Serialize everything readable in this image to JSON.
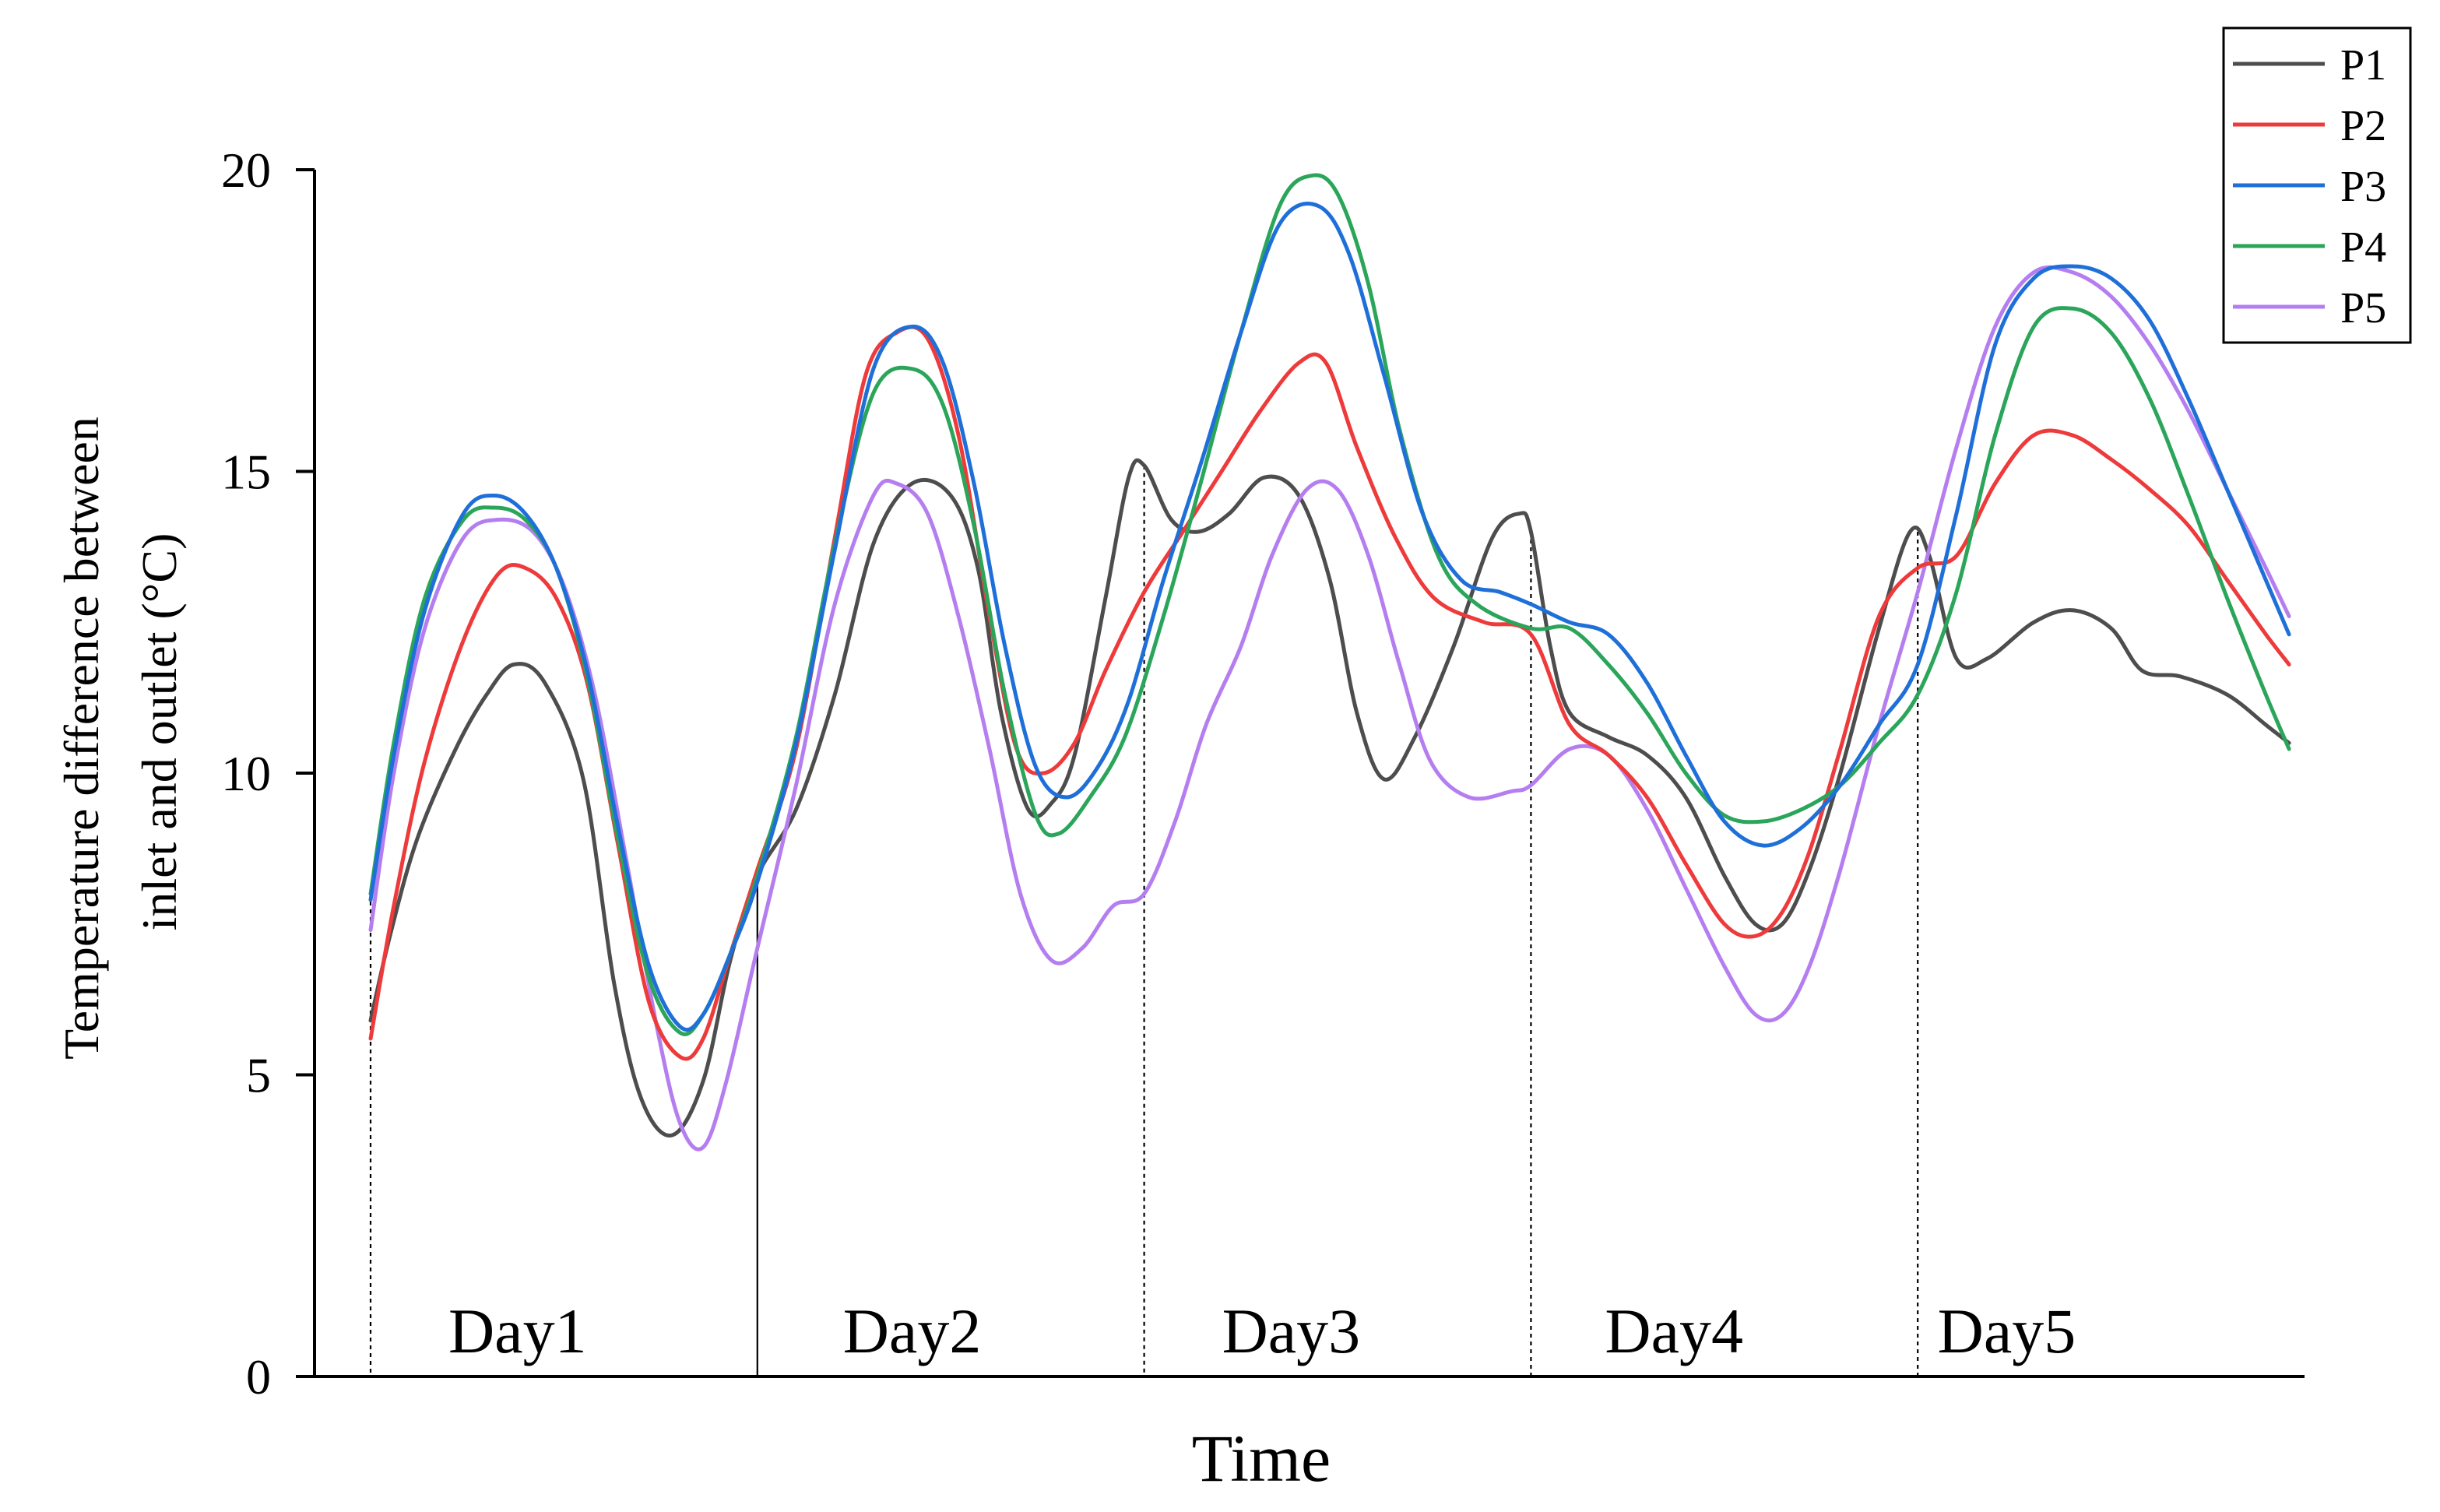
{
  "chart_data": {
    "type": "line",
    "title": "",
    "xlabel": "Time",
    "ylabel_lines": [
      "Temperature difference between",
      "inlet and outlet (°C)"
    ],
    "ylim": [
      0,
      20
    ],
    "yticks": [
      0,
      5,
      10,
      15,
      20
    ],
    "xlim": [
      0,
      5
    ],
    "day_boundaries": [
      0,
      1,
      2,
      3,
      4
    ],
    "day_labels": [
      {
        "label": "Day1",
        "x": 0.38
      },
      {
        "label": "Day2",
        "x": 1.4
      },
      {
        "label": "Day3",
        "x": 2.38
      },
      {
        "label": "Day4",
        "x": 3.37
      },
      {
        "label": "Day5",
        "x": 4.23
      }
    ],
    "legend_position": "top-right",
    "series": [
      {
        "name": "P1",
        "color": "#4d4d4d",
        "points": [
          [
            0.0,
            5.9
          ],
          [
            0.05,
            7.3
          ],
          [
            0.12,
            8.9
          ],
          [
            0.22,
            10.4
          ],
          [
            0.3,
            11.3
          ],
          [
            0.37,
            11.8
          ],
          [
            0.45,
            11.5
          ],
          [
            0.55,
            9.9
          ],
          [
            0.63,
            6.5
          ],
          [
            0.7,
            4.6
          ],
          [
            0.78,
            4.0
          ],
          [
            0.86,
            4.9
          ],
          [
            0.93,
            6.9
          ],
          [
            1.0,
            8.3
          ],
          [
            1.1,
            9.4
          ],
          [
            1.2,
            11.3
          ],
          [
            1.3,
            13.8
          ],
          [
            1.4,
            14.8
          ],
          [
            1.5,
            14.6
          ],
          [
            1.57,
            13.4
          ],
          [
            1.63,
            11.0
          ],
          [
            1.7,
            9.4
          ],
          [
            1.76,
            9.5
          ],
          [
            1.82,
            10.3
          ],
          [
            1.9,
            12.9
          ],
          [
            1.96,
            14.9
          ],
          [
            2.0,
            15.1
          ],
          [
            2.07,
            14.2
          ],
          [
            2.14,
            14.0
          ],
          [
            2.22,
            14.3
          ],
          [
            2.31,
            14.9
          ],
          [
            2.4,
            14.6
          ],
          [
            2.48,
            13.2
          ],
          [
            2.55,
            11.0
          ],
          [
            2.62,
            9.9
          ],
          [
            2.7,
            10.6
          ],
          [
            2.8,
            12.1
          ],
          [
            2.9,
            13.9
          ],
          [
            2.97,
            14.3
          ],
          [
            3.0,
            14.0
          ],
          [
            3.05,
            12.1
          ],
          [
            3.1,
            11.0
          ],
          [
            3.2,
            10.6
          ],
          [
            3.3,
            10.3
          ],
          [
            3.4,
            9.6
          ],
          [
            3.5,
            8.3
          ],
          [
            3.58,
            7.5
          ],
          [
            3.65,
            7.5
          ],
          [
            3.72,
            8.4
          ],
          [
            3.8,
            10.0
          ],
          [
            3.9,
            12.4
          ],
          [
            3.98,
            14.0
          ],
          [
            4.03,
            13.6
          ],
          [
            4.1,
            11.9
          ],
          [
            4.18,
            11.9
          ],
          [
            4.3,
            12.5
          ],
          [
            4.4,
            12.7
          ],
          [
            4.5,
            12.4
          ],
          [
            4.58,
            11.7
          ],
          [
            4.68,
            11.6
          ],
          [
            4.8,
            11.3
          ],
          [
            4.9,
            10.8
          ],
          [
            4.96,
            10.5
          ]
        ]
      },
      {
        "name": "P2",
        "color": "#ee3a3a",
        "points": [
          [
            0.0,
            5.6
          ],
          [
            0.06,
            7.8
          ],
          [
            0.14,
            10.2
          ],
          [
            0.24,
            12.2
          ],
          [
            0.33,
            13.3
          ],
          [
            0.4,
            13.4
          ],
          [
            0.48,
            12.9
          ],
          [
            0.56,
            11.5
          ],
          [
            0.64,
            8.8
          ],
          [
            0.72,
            6.2
          ],
          [
            0.8,
            5.3
          ],
          [
            0.86,
            5.6
          ],
          [
            0.93,
            7.0
          ],
          [
            1.0,
            8.4
          ],
          [
            1.1,
            10.4
          ],
          [
            1.2,
            13.9
          ],
          [
            1.28,
            16.6
          ],
          [
            1.36,
            17.3
          ],
          [
            1.44,
            17.2
          ],
          [
            1.52,
            15.6
          ],
          [
            1.6,
            12.6
          ],
          [
            1.67,
            10.4
          ],
          [
            1.74,
            10.0
          ],
          [
            1.82,
            10.5
          ],
          [
            1.9,
            11.7
          ],
          [
            2.0,
            13.0
          ],
          [
            2.1,
            14.0
          ],
          [
            2.2,
            15.0
          ],
          [
            2.3,
            16.0
          ],
          [
            2.4,
            16.8
          ],
          [
            2.47,
            16.8
          ],
          [
            2.55,
            15.4
          ],
          [
            2.65,
            13.9
          ],
          [
            2.75,
            12.9
          ],
          [
            2.88,
            12.5
          ],
          [
            3.0,
            12.3
          ],
          [
            3.1,
            10.8
          ],
          [
            3.2,
            10.3
          ],
          [
            3.3,
            9.6
          ],
          [
            3.4,
            8.5
          ],
          [
            3.5,
            7.5
          ],
          [
            3.58,
            7.3
          ],
          [
            3.65,
            7.7
          ],
          [
            3.72,
            8.7
          ],
          [
            3.8,
            10.4
          ],
          [
            3.9,
            12.6
          ],
          [
            4.0,
            13.4
          ],
          [
            4.1,
            13.6
          ],
          [
            4.2,
            14.8
          ],
          [
            4.3,
            15.6
          ],
          [
            4.4,
            15.6
          ],
          [
            4.5,
            15.2
          ],
          [
            4.6,
            14.7
          ],
          [
            4.7,
            14.1
          ],
          [
            4.8,
            13.2
          ],
          [
            4.9,
            12.3
          ],
          [
            4.96,
            11.8
          ]
        ]
      },
      {
        "name": "P3",
        "color": "#1f6fd9",
        "points": [
          [
            0.0,
            7.9
          ],
          [
            0.06,
            10.3
          ],
          [
            0.14,
            12.7
          ],
          [
            0.24,
            14.3
          ],
          [
            0.32,
            14.6
          ],
          [
            0.4,
            14.3
          ],
          [
            0.48,
            13.4
          ],
          [
            0.56,
            11.7
          ],
          [
            0.64,
            9.1
          ],
          [
            0.72,
            6.8
          ],
          [
            0.8,
            5.8
          ],
          [
            0.86,
            6.0
          ],
          [
            0.93,
            7.0
          ],
          [
            1.0,
            8.2
          ],
          [
            1.1,
            10.5
          ],
          [
            1.2,
            13.7
          ],
          [
            1.3,
            16.7
          ],
          [
            1.4,
            17.4
          ],
          [
            1.48,
            16.8
          ],
          [
            1.56,
            14.8
          ],
          [
            1.64,
            12.1
          ],
          [
            1.72,
            10.1
          ],
          [
            1.8,
            9.6
          ],
          [
            1.88,
            10.1
          ],
          [
            1.96,
            11.2
          ],
          [
            2.05,
            13.2
          ],
          [
            2.15,
            15.2
          ],
          [
            2.25,
            17.3
          ],
          [
            2.35,
            19.1
          ],
          [
            2.45,
            19.4
          ],
          [
            2.53,
            18.6
          ],
          [
            2.62,
            16.6
          ],
          [
            2.72,
            14.3
          ],
          [
            2.82,
            13.2
          ],
          [
            2.92,
            13.0
          ],
          [
            3.0,
            12.8
          ],
          [
            3.1,
            12.5
          ],
          [
            3.2,
            12.3
          ],
          [
            3.3,
            11.5
          ],
          [
            3.4,
            10.3
          ],
          [
            3.5,
            9.2
          ],
          [
            3.6,
            8.8
          ],
          [
            3.7,
            9.1
          ],
          [
            3.8,
            9.8
          ],
          [
            3.9,
            10.8
          ],
          [
            4.0,
            11.8
          ],
          [
            4.1,
            14.3
          ],
          [
            4.2,
            17.1
          ],
          [
            4.3,
            18.2
          ],
          [
            4.4,
            18.4
          ],
          [
            4.5,
            18.2
          ],
          [
            4.6,
            17.5
          ],
          [
            4.7,
            16.2
          ],
          [
            4.8,
            14.7
          ],
          [
            4.9,
            13.2
          ],
          [
            4.96,
            12.3
          ]
        ]
      },
      {
        "name": "P4",
        "color": "#2aa55a",
        "points": [
          [
            0.0,
            8.0
          ],
          [
            0.06,
            10.5
          ],
          [
            0.14,
            12.9
          ],
          [
            0.24,
            14.2
          ],
          [
            0.32,
            14.4
          ],
          [
            0.4,
            14.2
          ],
          [
            0.48,
            13.4
          ],
          [
            0.56,
            11.6
          ],
          [
            0.64,
            8.9
          ],
          [
            0.72,
            6.6
          ],
          [
            0.8,
            5.7
          ],
          [
            0.86,
            6.0
          ],
          [
            0.93,
            7.0
          ],
          [
            1.0,
            8.3
          ],
          [
            1.1,
            10.6
          ],
          [
            1.2,
            13.8
          ],
          [
            1.3,
            16.3
          ],
          [
            1.4,
            16.7
          ],
          [
            1.48,
            16.1
          ],
          [
            1.56,
            14.1
          ],
          [
            1.64,
            11.3
          ],
          [
            1.72,
            9.3
          ],
          [
            1.78,
            9.0
          ],
          [
            1.86,
            9.6
          ],
          [
            1.95,
            10.6
          ],
          [
            2.05,
            12.6
          ],
          [
            2.15,
            14.9
          ],
          [
            2.25,
            17.3
          ],
          [
            2.35,
            19.4
          ],
          [
            2.43,
            19.9
          ],
          [
            2.5,
            19.6
          ],
          [
            2.58,
            18.1
          ],
          [
            2.66,
            15.7
          ],
          [
            2.76,
            13.6
          ],
          [
            2.86,
            12.8
          ],
          [
            3.0,
            12.4
          ],
          [
            3.1,
            12.4
          ],
          [
            3.2,
            11.8
          ],
          [
            3.3,
            11.0
          ],
          [
            3.4,
            10.0
          ],
          [
            3.5,
            9.3
          ],
          [
            3.6,
            9.2
          ],
          [
            3.7,
            9.4
          ],
          [
            3.8,
            9.8
          ],
          [
            3.9,
            10.5
          ],
          [
            4.0,
            11.3
          ],
          [
            4.1,
            13.0
          ],
          [
            4.2,
            15.6
          ],
          [
            4.3,
            17.4
          ],
          [
            4.4,
            17.7
          ],
          [
            4.5,
            17.3
          ],
          [
            4.6,
            16.2
          ],
          [
            4.7,
            14.6
          ],
          [
            4.8,
            12.9
          ],
          [
            4.9,
            11.3
          ],
          [
            4.96,
            10.4
          ]
        ]
      },
      {
        "name": "P5",
        "color": "#b57ef0",
        "points": [
          [
            0.0,
            7.4
          ],
          [
            0.06,
            10.0
          ],
          [
            0.14,
            12.4
          ],
          [
            0.24,
            13.9
          ],
          [
            0.33,
            14.2
          ],
          [
            0.42,
            14.0
          ],
          [
            0.5,
            13.1
          ],
          [
            0.58,
            11.3
          ],
          [
            0.66,
            8.6
          ],
          [
            0.74,
            5.8
          ],
          [
            0.8,
            4.2
          ],
          [
            0.86,
            3.8
          ],
          [
            0.92,
            4.9
          ],
          [
            1.0,
            7.1
          ],
          [
            1.1,
            9.8
          ],
          [
            1.2,
            12.8
          ],
          [
            1.3,
            14.6
          ],
          [
            1.36,
            14.8
          ],
          [
            1.44,
            14.3
          ],
          [
            1.52,
            12.6
          ],
          [
            1.6,
            10.4
          ],
          [
            1.68,
            8.0
          ],
          [
            1.76,
            6.9
          ],
          [
            1.84,
            7.1
          ],
          [
            1.92,
            7.8
          ],
          [
            2.0,
            8.0
          ],
          [
            2.08,
            9.2
          ],
          [
            2.16,
            10.8
          ],
          [
            2.25,
            12.1
          ],
          [
            2.33,
            13.6
          ],
          [
            2.42,
            14.7
          ],
          [
            2.5,
            14.7
          ],
          [
            2.58,
            13.6
          ],
          [
            2.66,
            11.8
          ],
          [
            2.74,
            10.2
          ],
          [
            2.84,
            9.6
          ],
          [
            2.95,
            9.7
          ],
          [
            3.0,
            9.8
          ],
          [
            3.1,
            10.4
          ],
          [
            3.2,
            10.3
          ],
          [
            3.3,
            9.4
          ],
          [
            3.4,
            8.1
          ],
          [
            3.5,
            6.8
          ],
          [
            3.58,
            6.0
          ],
          [
            3.65,
            6.0
          ],
          [
            3.72,
            6.8
          ],
          [
            3.8,
            8.4
          ],
          [
            3.9,
            10.8
          ],
          [
            4.0,
            13.0
          ],
          [
            4.1,
            15.4
          ],
          [
            4.2,
            17.4
          ],
          [
            4.3,
            18.3
          ],
          [
            4.4,
            18.3
          ],
          [
            4.5,
            17.9
          ],
          [
            4.6,
            17.1
          ],
          [
            4.7,
            16.0
          ],
          [
            4.8,
            14.7
          ],
          [
            4.9,
            13.4
          ],
          [
            4.96,
            12.6
          ]
        ]
      }
    ]
  }
}
